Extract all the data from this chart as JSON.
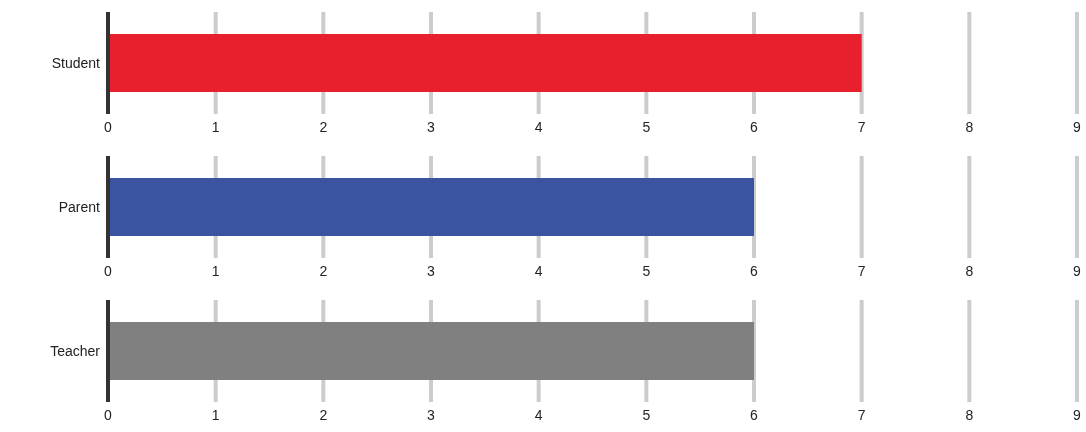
{
  "chart_data": [
    {
      "type": "bar",
      "orientation": "horizontal",
      "categories": [
        "Student"
      ],
      "values": [
        7
      ],
      "color": "#e81f2c",
      "xlim": [
        0,
        9
      ],
      "xticks": [
        0,
        1,
        2,
        3,
        4,
        5,
        6,
        7,
        8,
        9
      ],
      "grid": "x"
    },
    {
      "type": "bar",
      "orientation": "horizontal",
      "categories": [
        "Parent"
      ],
      "values": [
        6
      ],
      "color": "#3a54a0",
      "xlim": [
        0,
        9
      ],
      "xticks": [
        0,
        1,
        2,
        3,
        4,
        5,
        6,
        7,
        8,
        9
      ],
      "grid": "x"
    },
    {
      "type": "bar",
      "orientation": "horizontal",
      "categories": [
        "Teacher"
      ],
      "values": [
        6
      ],
      "color": "#808080",
      "xlim": [
        0,
        9
      ],
      "xticks": [
        0,
        1,
        2,
        3,
        4,
        5,
        6,
        7,
        8,
        9
      ],
      "grid": "x"
    }
  ]
}
